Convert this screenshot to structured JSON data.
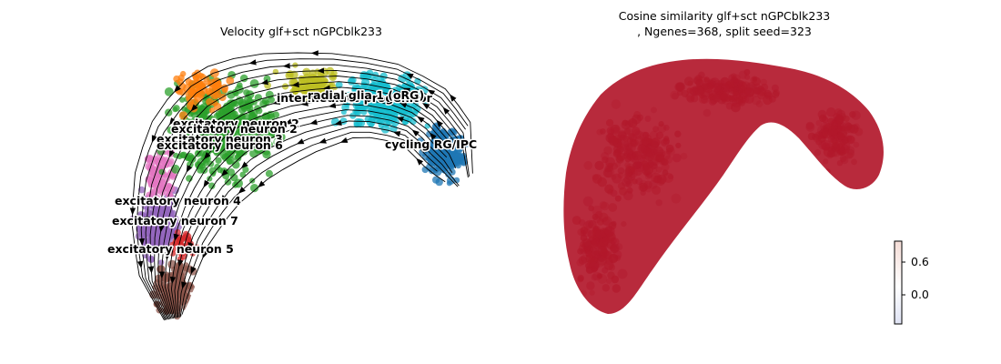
{
  "chart_data": [
    {
      "type": "scatter",
      "title": "Velocity glf+sct nGPCblk233",
      "clusters": [
        {
          "name": "radial glia 1 (oRG)",
          "color": "#17becf"
        },
        {
          "name": "intermediate progenitor",
          "color": "#bcbd22"
        },
        {
          "name": "cycling RG/IPC",
          "color": "#1f77b4"
        },
        {
          "name": "excitatory neuron 2",
          "color": "#2ca02c"
        },
        {
          "name": "excitatory neuron 3",
          "color": "#ff7f0e"
        },
        {
          "name": "excitatory neuron 6",
          "color": "#e377c2"
        },
        {
          "name": "excitatory neuron 4",
          "color": "#9467bd"
        },
        {
          "name": "excitatory neuron 7",
          "color": "#d62728"
        },
        {
          "name": "excitatory neuron 5",
          "color": "#8c564b"
        }
      ],
      "labels": {
        "intermediate": "intermediate progenitor",
        "radial": "radial glia 1 (oRG)",
        "en2a": "excitatory neuron 2",
        "en2b": "excitatory neuron 2",
        "en3": "excitatory neuron 3",
        "en6": "excitatory neuron 6",
        "cycling": "cycling RG/IPC",
        "en4": "excitatory neuron 4",
        "en7": "excitatory neuron 7",
        "en5": "excitatory neuron 5"
      },
      "grid": false,
      "axes_visible": false
    },
    {
      "type": "scatter",
      "title_line1": "Cosine similarity glf+sct nGPCblk233",
      "title_line2": ", Ngenes=368, split seed=323",
      "point_color": "#b2182b",
      "colorbar": {
        "ticks": [
          "0.6",
          "0.0"
        ],
        "colors": [
          "#f4dcd6",
          "#ffffff",
          "#dfe3f4"
        ]
      },
      "grid": false,
      "axes_visible": false
    }
  ]
}
